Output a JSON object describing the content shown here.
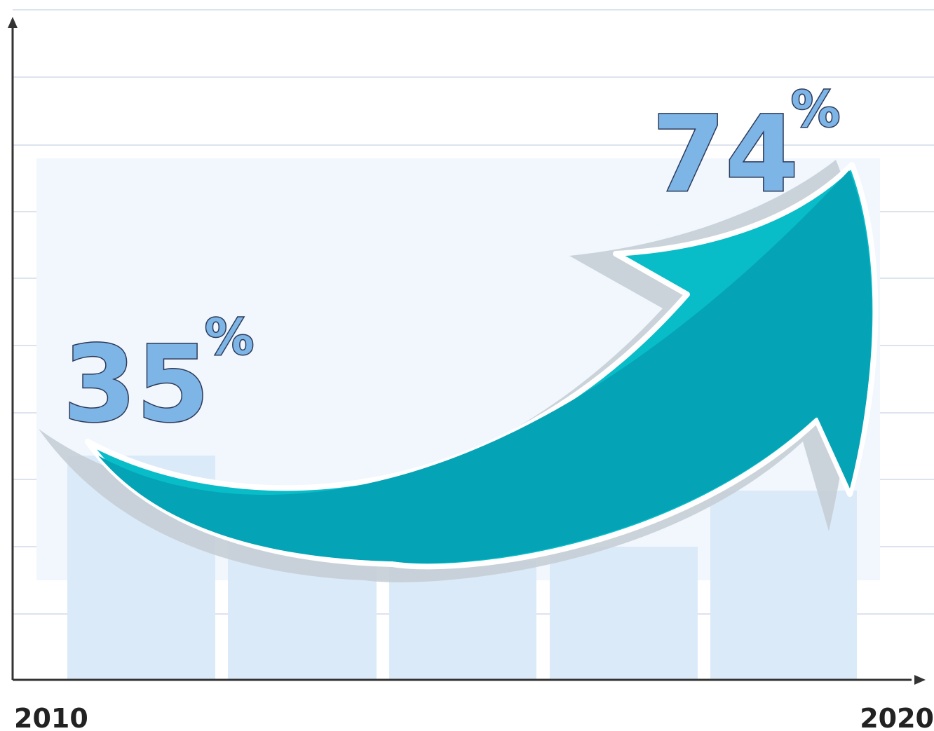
{
  "labels": [
    {
      "number": "35",
      "unit": "%"
    },
    {
      "number": "74",
      "unit": "%"
    }
  ],
  "axis": {
    "start": "2010",
    "end": "2020"
  }
}
